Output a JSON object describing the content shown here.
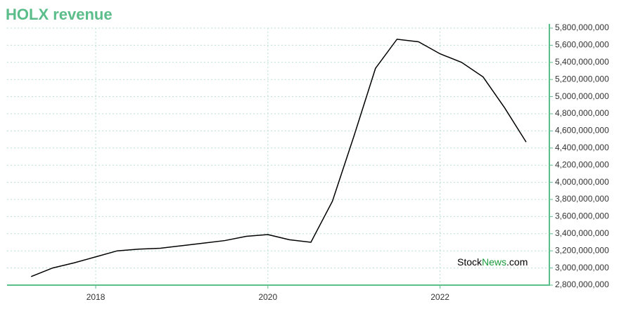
{
  "chart_data": {
    "type": "line",
    "title": "HOLX revenue",
    "watermark": [
      "Stock",
      "News",
      ".com"
    ],
    "x": [
      2017.25,
      2017.5,
      2017.75,
      2018,
      2018.25,
      2018.5,
      2018.75,
      2019,
      2019.25,
      2019.5,
      2019.75,
      2020,
      2020.25,
      2020.5,
      2020.75,
      2021,
      2021.25,
      2021.5,
      2021.75,
      2022,
      2022.25,
      2022.5,
      2022.75,
      2023
    ],
    "series": [
      {
        "name": "HOLX revenue",
        "color": "#000000",
        "values": [
          2900000000,
          3000000000,
          3060000000,
          3130000000,
          3200000000,
          3220000000,
          3230000000,
          3260000000,
          3290000000,
          3320000000,
          3370000000,
          3390000000,
          3330000000,
          3300000000,
          3780000000,
          4540000000,
          5330000000,
          5670000000,
          5640000000,
          5500000000,
          5400000000,
          5230000000,
          4870000000,
          4470000000
        ]
      }
    ],
    "xlim": [
      2016.97,
      2023.27
    ],
    "xticks": [
      2018,
      2020,
      2022
    ],
    "ylim": [
      2800000000,
      5800000000
    ],
    "yticks": [
      {
        "value": 2800000000,
        "label": "2,800,000,000"
      },
      {
        "value": 3000000000,
        "label": "3,000,000,000"
      },
      {
        "value": 3200000000,
        "label": "3,200,000,000"
      },
      {
        "value": 3400000000,
        "label": "3,400,000,000"
      },
      {
        "value": 3600000000,
        "label": "3,600,000,000"
      },
      {
        "value": 3800000000,
        "label": "3,800,000,000"
      },
      {
        "value": 4000000000,
        "label": "4,000,000,000"
      },
      {
        "value": 4200000000,
        "label": "4,200,000,000"
      },
      {
        "value": 4400000000,
        "label": "4,400,000,000"
      },
      {
        "value": 4600000000,
        "label": "4,600,000,000"
      },
      {
        "value": 4800000000,
        "label": "4,800,000,000"
      },
      {
        "value": 5000000000,
        "label": "5,000,000,000"
      },
      {
        "value": 5200000000,
        "label": "5,200,000,000"
      },
      {
        "value": 5400000000,
        "label": "5,400,000,000"
      },
      {
        "value": 5600000000,
        "label": "5,600,000,000"
      },
      {
        "value": 5800000000,
        "label": "5,800,000,000"
      }
    ],
    "grid": true,
    "axis_color": "#5cbf8a"
  }
}
